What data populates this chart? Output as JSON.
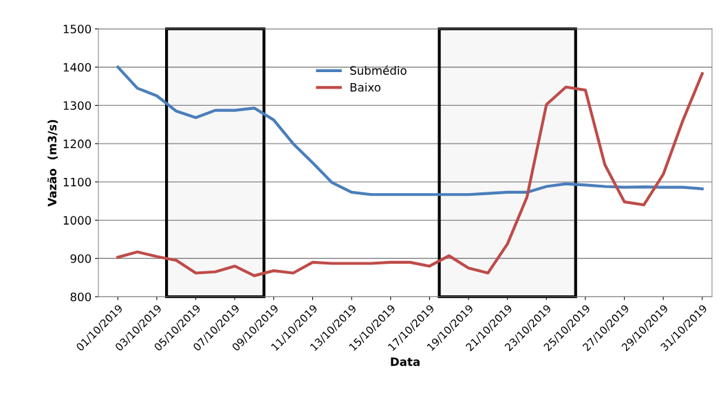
{
  "chart_data": {
    "type": "line",
    "xlabel": "Data",
    "ylabel": "Vazão  (m3/s)",
    "x": [
      "2019-10-01",
      "2019-10-02",
      "2019-10-03",
      "2019-10-04",
      "2019-10-05",
      "2019-10-06",
      "2019-10-07",
      "2019-10-08",
      "2019-10-09",
      "2019-10-10",
      "2019-10-11",
      "2019-10-12",
      "2019-10-13",
      "2019-10-14",
      "2019-10-15",
      "2019-10-16",
      "2019-10-17",
      "2019-10-18",
      "2019-10-19",
      "2019-10-20",
      "2019-10-21",
      "2019-10-22",
      "2019-10-23",
      "2019-10-24",
      "2019-10-25",
      "2019-10-26",
      "2019-10-27",
      "2019-10-28",
      "2019-10-29",
      "2019-10-30",
      "2019-10-31"
    ],
    "series": [
      {
        "name": "Submédio",
        "color": "#4a7ebb",
        "values": [
          1400,
          1345,
          1325,
          1285,
          1268,
          1287,
          1287,
          1293,
          1262,
          1200,
          1150,
          1098,
          1073,
          1067,
          1067,
          1067,
          1067,
          1067,
          1067,
          1070,
          1073,
          1073,
          1088,
          1095,
          1092,
          1088,
          1086,
          1087,
          1086,
          1086,
          1082
        ]
      },
      {
        "name": "Baixo",
        "color": "#be4b48",
        "values": [
          903,
          917,
          905,
          895,
          862,
          865,
          880,
          855,
          868,
          862,
          890,
          887,
          887,
          887,
          890,
          890,
          880,
          907,
          875,
          862,
          938,
          1060,
          1302,
          1348,
          1340,
          1145,
          1048,
          1040,
          1120,
          1260,
          1383
        ]
      }
    ],
    "xlim": [
      "2019-09-30",
      "2019-10-31T12:00"
    ],
    "xticks": [
      {
        "value": "2019-10-01",
        "label": "01/10/2019"
      },
      {
        "value": "2019-10-03",
        "label": "03/10/2019"
      },
      {
        "value": "2019-10-05",
        "label": "05/10/2019"
      },
      {
        "value": "2019-10-07",
        "label": "07/10/2019"
      },
      {
        "value": "2019-10-09",
        "label": "09/10/2019"
      },
      {
        "value": "2019-10-11",
        "label": "11/10/2019"
      },
      {
        "value": "2019-10-13",
        "label": "13/10/2019"
      },
      {
        "value": "2019-10-15",
        "label": "15/10/2019"
      },
      {
        "value": "2019-10-17",
        "label": "17/10/2019"
      },
      {
        "value": "2019-10-19",
        "label": "19/10/2019"
      },
      {
        "value": "2019-10-21",
        "label": "21/10/2019"
      },
      {
        "value": "2019-10-23",
        "label": "23/10/2019"
      },
      {
        "value": "2019-10-25",
        "label": "25/10/2019"
      },
      {
        "value": "2019-10-27",
        "label": "27/10/2019"
      },
      {
        "value": "2019-10-29",
        "label": "29/10/2019"
      },
      {
        "value": "2019-10-31",
        "label": "31/10/2019"
      }
    ],
    "ylim": [
      800,
      1500
    ],
    "yticks": [
      800,
      900,
      1000,
      1100,
      1200,
      1300,
      1400,
      1500
    ],
    "bands": [
      {
        "axis": "x",
        "from": "2019-10-03T12:00",
        "to": "2019-10-08T12:00",
        "color": "#000000"
      },
      {
        "axis": "x",
        "from": "2019-10-17T12:00",
        "to": "2019-10-24T12:00",
        "color": "#000000"
      }
    ],
    "grid": "y",
    "legend": "top",
    "marker": "none",
    "line_style": "solid"
  }
}
